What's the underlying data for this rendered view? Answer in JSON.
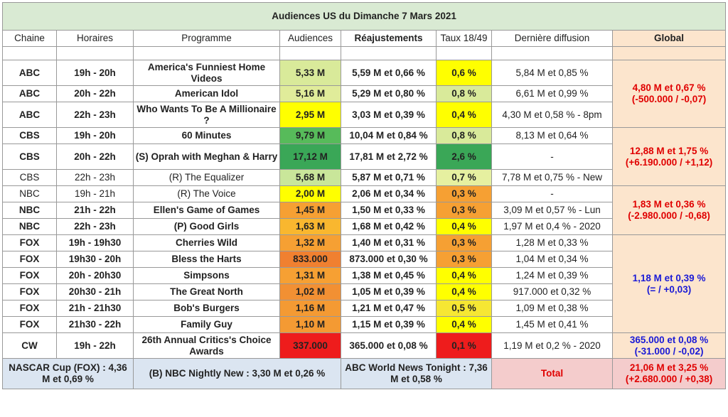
{
  "title": "Audiences US du Dimanche 7 Mars 2021",
  "headers": [
    "Chaine",
    "Horaires",
    "Programme",
    "Audiences",
    "Réajustements",
    "Taux 18/49",
    "Dernière diffusion",
    "Global"
  ],
  "rows": [
    {
      "chaine": "ABC",
      "horaire": "19h - 20h",
      "programme": "America's Funniest Home Videos",
      "audience": "5,33 M",
      "reaj": "5,59 M et 0,66 %",
      "taux": "0,6 %",
      "derniere": "5,84 M et 0,85 %",
      "bold": true,
      "aud_color": "#d9ea9a",
      "taux_color": "#ffff00"
    },
    {
      "chaine": "ABC",
      "horaire": "20h - 22h",
      "programme": "American Idol",
      "audience": "5,16 M",
      "reaj": "5,29 M et 0,80 %",
      "taux": "0,8 %",
      "derniere": "6,61 M et 0,99 %",
      "bold": true,
      "aud_color": "#e0ec9a",
      "taux_color": "#d9ea9a"
    },
    {
      "chaine": "ABC",
      "horaire": "22h - 23h",
      "programme": "Who Wants To Be A Millionaire ?",
      "audience": "2,95 M",
      "reaj": "3,03 M et 0,39 %",
      "taux": "0,4 %",
      "derniere": "4,30 M et 0,58 % - 8pm",
      "bold": true,
      "aud_color": "#ffff00",
      "taux_color": "#ffff00"
    },
    {
      "chaine": "CBS",
      "horaire": "19h - 20h",
      "programme": "60 Minutes",
      "audience": "9,79 M",
      "reaj": "10,04 M et 0,84 %",
      "taux": "0,8 %",
      "derniere": "8,13 M et 0,64 %",
      "bold": true,
      "aud_color": "#57bb5a",
      "taux_color": "#d9ea9a"
    },
    {
      "chaine": "CBS",
      "horaire": "20h - 22h",
      "programme": "(S) Oprah with Meghan & Harry",
      "audience": "17,12 M",
      "reaj": "17,81 M et 2,72 %",
      "taux": "2,6 %",
      "derniere": "-",
      "bold": true,
      "aud_color": "#3aa757",
      "taux_color": "#3aa757"
    },
    {
      "chaine": "CBS",
      "horaire": "22h - 23h",
      "programme": "(R) The Equalizer",
      "audience": "5,68 M",
      "reaj": "5,87 M et 0,71 %",
      "taux": "0,7 %",
      "derniere": "7,78 M et 0,75 % - New",
      "bold": false,
      "aud_color": "#c9e69a",
      "taux_color": "#e6f0a0"
    },
    {
      "chaine": "NBC",
      "horaire": "19h - 21h",
      "programme": "(R) The Voice",
      "audience": "2,00 M",
      "reaj": "2,06 M et 0,34 %",
      "taux": "0,3 %",
      "derniere": "-",
      "bold": false,
      "aud_color": "#ffff00",
      "taux_color": "#f6a033"
    },
    {
      "chaine": "NBC",
      "horaire": "21h - 22h",
      "programme": "Ellen's Game of Games",
      "audience": "1,45 M",
      "reaj": "1,50 M et 0,33 %",
      "taux": "0,3 %",
      "derniere": "3,09 M et 0,57 % - Lun",
      "bold": true,
      "aud_color": "#f6a033",
      "taux_color": "#f6a033"
    },
    {
      "chaine": "NBC",
      "horaire": "22h - 23h",
      "programme": "(P) Good Girls",
      "audience": "1,63 M",
      "reaj": "1,68 M et 0,42 %",
      "taux": "0,4 %",
      "derniere": "1,97 M et 0,4 % - 2020",
      "bold": true,
      "aud_color": "#f9b72f",
      "taux_color": "#ffff00"
    },
    {
      "chaine": "FOX",
      "horaire": "19h - 19h30",
      "programme": "Cherries Wild",
      "audience": "1,32 M",
      "reaj": "1,40 M et 0,31 %",
      "taux": "0,3 %",
      "derniere": "1,28 M et 0,33 %",
      "bold": true,
      "aud_color": "#f6a033",
      "taux_color": "#f6a033"
    },
    {
      "chaine": "FOX",
      "horaire": "19h30 - 20h",
      "programme": "Bless the Harts",
      "audience": "833.000",
      "reaj": "873.000 et 0,30 %",
      "taux": "0,3 %",
      "derniere": "1,04 M et 0,34 %",
      "bold": true,
      "aud_color": "#f08030",
      "taux_color": "#f6a033"
    },
    {
      "chaine": "FOX",
      "horaire": "20h - 20h30",
      "programme": "Simpsons",
      "audience": "1,31 M",
      "reaj": "1,38 M et 0,45 %",
      "taux": "0,4 %",
      "derniere": "1,24 M et 0,39 %",
      "bold": true,
      "aud_color": "#f6a033",
      "taux_color": "#ffff00"
    },
    {
      "chaine": "FOX",
      "horaire": "20h30 - 21h",
      "programme": "The Great North",
      "audience": "1,02 M",
      "reaj": "1,05 M et 0,39 %",
      "taux": "0,4 %",
      "derniere": "917.000 et 0,32 %",
      "bold": true,
      "aud_color": "#f29033",
      "taux_color": "#ffff00"
    },
    {
      "chaine": "FOX",
      "horaire": "21h - 21h30",
      "programme": "Bob's Burgers",
      "audience": "1,16 M",
      "reaj": "1,21 M et 0,47 %",
      "taux": "0,5 %",
      "derniere": "1,09 M et 0,38 %",
      "bold": true,
      "aud_color": "#f49a33",
      "taux_color": "#f6e733"
    },
    {
      "chaine": "FOX",
      "horaire": "21h30 - 22h",
      "programme": "Family Guy",
      "audience": "1,10 M",
      "reaj": "1,15 M et 0,39 %",
      "taux": "0,4 %",
      "derniere": "1,45 M et 0,41 %",
      "bold": true,
      "aud_color": "#f49a33",
      "taux_color": "#ffff00"
    },
    {
      "chaine": "CW",
      "horaire": "19h - 22h",
      "programme": "26th Annual Critics's Choice Awards",
      "audience": "337.000",
      "reaj": "365.000 et 0,08 %",
      "taux": "0,1 %",
      "derniere": "1,19 M et 0,2 % - 2020",
      "bold": true,
      "aud_color": "#ee1c1c",
      "taux_color": "#ee1c1c"
    }
  ],
  "globals": [
    {
      "line1": "4,80 M et 0,67 %",
      "line2": "(-500.000 / -0,07)",
      "color": "red"
    },
    {
      "line1": "12,88 M et 1,75 %",
      "line2": "(+6.190.000 / +1,12)",
      "color": "red"
    },
    {
      "line1": "1,83 M et 0,36 %",
      "line2": "(-2.980.000 / -0,68)",
      "color": "red"
    },
    {
      "line1": "1,18 M et 0,39 %",
      "line2": "(= / +0,03)",
      "color": "blue"
    },
    {
      "line1": "365.000 et 0,08 %",
      "line2": "(-31.000 / -0,02)",
      "color": "blue"
    }
  ],
  "footer": {
    "nascar": "NASCAR Cup (FOX) : 4,36 M et 0,69 %",
    "nbc_news": "(B) NBC Nightly New : 3,30 M et 0,26 %",
    "abc_news": "ABC World News Tonight : 7,36 M et 0,58 %",
    "total_label": "Total",
    "total_line1": "21,06 M et 3,25 %",
    "total_line2": "(+2.680.000 / +0,38)"
  }
}
